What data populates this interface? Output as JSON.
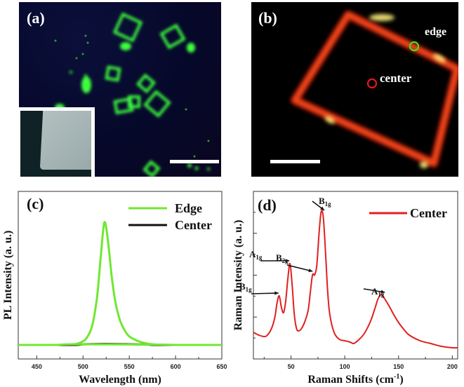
{
  "panels": {
    "a": {
      "label": "(a)",
      "description": "Fluorescence micrograph of green-emitting square microplates on dark blue background with SEM inset of a plate corner",
      "colors": {
        "background": "#06082a",
        "emission": "#39ff3a",
        "inset_bg": "#0f2226",
        "inset_plate": "#a8b6b6",
        "scale_bar": "#ffffff"
      }
    },
    "b": {
      "label": "(b)",
      "edge_label": "edge",
      "center_label": "center",
      "colors": {
        "background": "#000000",
        "edge_glow": "#d92a10",
        "hot_spot": "#fff27a",
        "edge_marker": "#39e01e",
        "center_marker": "#e01a1a",
        "scale_bar": "#ffffff"
      }
    },
    "c": {
      "label": "(c)"
    },
    "d": {
      "label": "(d)"
    }
  },
  "chart_data": [
    {
      "panel": "(c)",
      "type": "line",
      "title": "",
      "xlabel": "Wavelength (nm)",
      "ylabel": "PL Intensity (a. u.)",
      "xlim": [
        430,
        650
      ],
      "ylim": [
        0,
        1.1
      ],
      "xticks": [
        450,
        500,
        550,
        600,
        650
      ],
      "yticks": [],
      "grid": false,
      "legend_position": "upper right",
      "series": [
        {
          "name": "Edge",
          "color": "#6fe830",
          "x": [
            430,
            470,
            490,
            500,
            505,
            510,
            515,
            518,
            521,
            523,
            525,
            528,
            531,
            535,
            540,
            545,
            550,
            560,
            570,
            580,
            600,
            650
          ],
          "values": [
            0.0,
            0.0,
            0.005,
            0.03,
            0.07,
            0.16,
            0.38,
            0.62,
            0.88,
            1.0,
            0.96,
            0.78,
            0.56,
            0.35,
            0.2,
            0.12,
            0.07,
            0.03,
            0.01,
            0.003,
            0.0,
            0.0
          ]
        },
        {
          "name": "Center",
          "color": "#111111",
          "x": [
            430,
            490,
            500,
            523,
            550,
            570,
            580,
            650
          ],
          "values": [
            0.0,
            0.0,
            0.005,
            0.008,
            0.006,
            0.003,
            0.0,
            0.0
          ]
        }
      ]
    },
    {
      "panel": "(d)",
      "type": "line",
      "title": "",
      "xlabel": "Raman Shifts  (cm-1)",
      "xlabel_parts": {
        "main": "Raman Shifts  (cm",
        "sup": "-1",
        "close": ")"
      },
      "ylabel": "Raman Intensity (a. u.)",
      "xlim": [
        15,
        205
      ],
      "ylim": [
        0,
        1.0
      ],
      "xticks": [
        50,
        100,
        150,
        200
      ],
      "yticks": [],
      "grid": false,
      "legend_position": "upper right",
      "series": [
        {
          "name": "Center",
          "color": "#e0201e",
          "x": [
            15,
            20,
            25,
            28,
            32,
            35,
            37,
            39,
            41,
            43,
            45,
            47,
            49,
            51,
            53,
            55,
            57,
            60,
            63,
            66,
            68,
            70,
            72,
            74,
            76,
            78,
            80,
            82,
            84,
            86,
            90,
            95,
            100,
            105,
            108,
            112,
            118,
            124,
            128,
            131,
            134,
            137,
            141,
            146,
            150,
            155,
            160,
            170,
            180,
            190,
            200,
            205
          ],
          "values": [
            0.14,
            0.12,
            0.11,
            0.12,
            0.17,
            0.25,
            0.35,
            0.4,
            0.32,
            0.28,
            0.36,
            0.52,
            0.63,
            0.48,
            0.27,
            0.17,
            0.15,
            0.17,
            0.22,
            0.3,
            0.43,
            0.55,
            0.55,
            0.62,
            0.84,
            1.0,
            0.96,
            0.72,
            0.44,
            0.27,
            0.14,
            0.09,
            0.08,
            0.07,
            0.06,
            0.08,
            0.13,
            0.22,
            0.31,
            0.38,
            0.41,
            0.38,
            0.33,
            0.26,
            0.21,
            0.16,
            0.12,
            0.08,
            0.06,
            0.04,
            0.03,
            0.03
          ]
        }
      ],
      "annotations": [
        {
          "text": "B",
          "sub": "1g",
          "peak_x": 39
        },
        {
          "text": "A",
          "sub": "1g",
          "peak_x": 49
        },
        {
          "text": "B",
          "sub": "2g",
          "peak_x": 70
        },
        {
          "text": "B",
          "sub": "1g",
          "peak_x": 79
        },
        {
          "text": "A",
          "sub": "1g",
          "peak_x": 134
        }
      ]
    }
  ]
}
